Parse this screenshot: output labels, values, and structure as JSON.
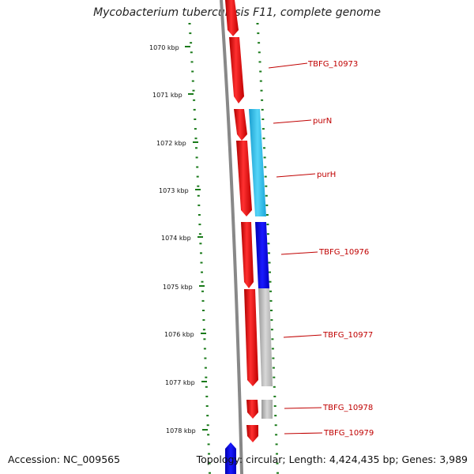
{
  "title": "Mycobacterium tuberculosis F11, complete genome",
  "footer": {
    "accession": "Accession: NC_009565",
    "stats": "Topology: circular; Length: 4,424,435 bp; Genes: 3,989"
  },
  "colors": {
    "reverse_gene": "#ff0000",
    "forward_gene_purN": "#33c3ee",
    "forward_gene_TBFG_10976": "#0000ee",
    "other_gene": "#bbbbbb",
    "blue_gene": "#1010dd",
    "tick_green": "#1a7a1a",
    "label_red": "#c00000",
    "backbone": "#777777"
  },
  "kbp_labels": [
    "1070 kbp",
    "1071 kbp",
    "1072 kbp",
    "1073 kbp",
    "1074 kbp",
    "1075 kbp",
    "1076 kbp",
    "1077 kbp",
    "1078 kbp"
  ],
  "gene_labels": [
    "TBFG_10973",
    "purN",
    "purH",
    "TBFG_10976",
    "TBFG_10977",
    "TBFG_10978",
    "TBFG_10979"
  ]
}
